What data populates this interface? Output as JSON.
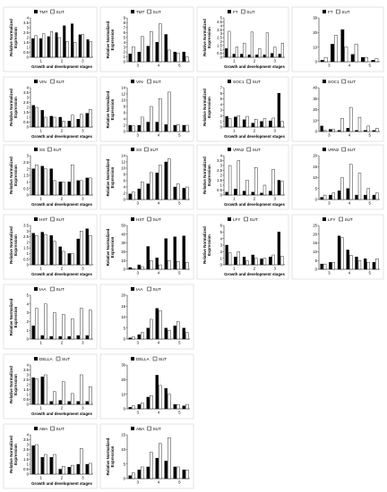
{
  "figure": {
    "colors": {
      "tmt": "#000000",
      "sut": "#ffffff",
      "stroke": "#000000",
      "panel_border": "#c8c8c8"
    }
  },
  "chart_data": [
    {
      "type": "bar",
      "legend": [
        "TMT",
        "SUT"
      ],
      "ylabel": "Relative Normalized Expression",
      "xlabel": "Growth and development stages",
      "ylim": [
        0,
        4
      ],
      "yticks": [
        0,
        0.5,
        1,
        1.5,
        2,
        2.5,
        3,
        3.5,
        4
      ],
      "xticklabels": [
        "1",
        "2",
        "3"
      ],
      "series": [
        {
          "name": "TMT",
          "values": [
            1.9,
            1.9,
            2.1,
            2.5,
            3.2,
            3.4,
            2.3,
            1.8
          ]
        },
        {
          "name": "SUT",
          "values": [
            2.2,
            2.4,
            2.6,
            2.0,
            1.6,
            1.5,
            2.3,
            1.6
          ]
        }
      ]
    },
    {
      "type": "bar",
      "legend": [
        "TMT",
        "SUT"
      ],
      "ylabel": "Relative Normalized Expression",
      "xlabel": "",
      "ylim": [
        0,
        9
      ],
      "yticks": [
        0,
        1,
        2,
        3,
        4,
        5,
        6,
        7,
        8,
        9
      ],
      "xticklabels": [
        "3",
        "4",
        "5"
      ],
      "series": [
        {
          "name": "TMT",
          "values": [
            1.6,
            2.0,
            3.2,
            4.0,
            5.6,
            2.0,
            2.0
          ]
        },
        {
          "name": "SUT",
          "values": [
            3.1,
            5.2,
            6.2,
            7.8,
            2.4,
            1.8,
            1.0
          ]
        }
      ]
    },
    {
      "type": "bar",
      "legend": [
        "FT",
        "SUT"
      ],
      "ylabel": "Relative Normalized Expression",
      "xlabel": "Growth and development stages",
      "ylim": [
        0,
        5
      ],
      "yticks": [
        0,
        0.5,
        1,
        1.5,
        2,
        2.5,
        3,
        3.5,
        4,
        4.5,
        5
      ],
      "xticklabels": [
        "1",
        "2",
        "3"
      ],
      "series": [
        {
          "name": "FT",
          "values": [
            1.1,
            0.4,
            0.4,
            0.3,
            0.3,
            0.3,
            0.5,
            0.4
          ]
        },
        {
          "name": "SUT",
          "values": [
            3.3,
            1.3,
            1.8,
            3.2,
            1.1,
            3.1,
            1.3,
            1.8
          ]
        }
      ]
    },
    {
      "type": "bar",
      "legend": [
        "FT",
        "SUT"
      ],
      "ylabel": "",
      "xlabel": "",
      "ylim": [
        0,
        30
      ],
      "yticks": [
        0,
        10,
        20,
        30
      ],
      "xticklabels": [
        "3",
        "4",
        "5"
      ],
      "series": [
        {
          "name": "FT",
          "values": [
            1.0,
            12.0,
            22.0,
            5.0,
            3.0,
            1.0
          ]
        },
        {
          "name": "SUT",
          "values": [
            3.0,
            18.0,
            10.0,
            12.0,
            3.0,
            2.0
          ]
        }
      ]
    },
    {
      "type": "bar",
      "legend": [
        "VIN",
        "SUT"
      ],
      "ylabel": "Relative Normalized Expression",
      "xlabel": "Growth and development stages",
      "ylim": [
        0,
        4
      ],
      "yticks": [
        0,
        0.5,
        1,
        1.5,
        2,
        2.5,
        3,
        3.5,
        4
      ],
      "xticklabels": [
        "1",
        "2",
        "3"
      ],
      "series": [
        {
          "name": "VIN",
          "values": [
            2.2,
            1.7,
            1.1,
            1.0,
            0.6,
            0.8,
            1.4
          ]
        },
        {
          "name": "SUT",
          "values": [
            2.0,
            1.0,
            1.0,
            0.6,
            1.2,
            1.3,
            1.8
          ]
        }
      ]
    },
    {
      "type": "bar",
      "legend": [
        "VIN",
        "SUT"
      ],
      "ylabel": "Relative Normalized Expression",
      "xlabel": "",
      "ylim": [
        0,
        14
      ],
      "yticks": [
        0,
        2,
        4,
        6,
        8,
        10,
        12,
        14
      ],
      "xticklabels": [
        "3",
        "4",
        "5"
      ],
      "series": [
        {
          "name": "VIN",
          "values": [
            2.0,
            2.0,
            3.0,
            3.0,
            2.2,
            2.0,
            2.0
          ]
        },
        {
          "name": "SUT",
          "values": [
            1.8,
            4.6,
            8.0,
            10.5,
            12.6,
            2.2,
            2.0
          ]
        }
      ]
    },
    {
      "type": "bar",
      "legend": [
        "SOC1",
        "SUT"
      ],
      "ylabel": "Relative Normalized Expression",
      "xlabel": "Growth and development stages",
      "ylim": [
        0,
        7
      ],
      "yticks": [
        0,
        1,
        2,
        3,
        4,
        5,
        6,
        7
      ],
      "xticklabels": [
        "1",
        "2",
        "3"
      ],
      "series": [
        {
          "name": "SOC1",
          "values": [
            1.9,
            1.8,
            1.3,
            0.7,
            1.0,
            1.1,
            6.0
          ]
        },
        {
          "name": "SUT",
          "values": [
            1.5,
            2.0,
            1.9,
            1.4,
            1.5,
            1.6,
            1.0
          ]
        }
      ]
    },
    {
      "type": "bar",
      "legend": [
        "SOC1",
        "SUT"
      ],
      "ylabel": "",
      "xlabel": "",
      "ylim": [
        0,
        40
      ],
      "yticks": [
        0,
        10,
        20,
        30,
        40
      ],
      "xticklabels": [
        "3",
        "4",
        "5"
      ],
      "series": [
        {
          "name": "SOC1",
          "values": [
            5.0,
            2.0,
            1.0,
            3.0,
            1.0,
            1.0,
            1.0
          ]
        },
        {
          "name": "SUT",
          "values": [
            1.0,
            2.0,
            12.0,
            22.0,
            13.0,
            5.0,
            3.0
          ]
        }
      ]
    },
    {
      "type": "bar",
      "legend": [
        "SS",
        "SUT"
      ],
      "ylabel": "Relative Normalized Expression",
      "xlabel": "Growth and development stages",
      "ylim": [
        0,
        3
      ],
      "yticks": [
        0,
        0.5,
        1,
        1.5,
        2,
        2.5,
        3
      ],
      "xticklabels": [
        "1",
        "2",
        "3"
      ],
      "series": [
        {
          "name": "SS",
          "values": [
            2.0,
            2.2,
            2.0,
            1.0,
            1.0,
            1.1,
            1.3
          ]
        },
        {
          "name": "SUT",
          "values": [
            2.3,
            2.0,
            1.1,
            1.0,
            2.3,
            1.1,
            1.3
          ]
        }
      ]
    },
    {
      "type": "bar",
      "legend": [
        "SS",
        "SUT"
      ],
      "ylabel": "Relative Normalized Expression",
      "xlabel": "",
      "ylim": [
        0,
        14
      ],
      "yticks": [
        0,
        2,
        4,
        6,
        8,
        10,
        12,
        14
      ],
      "xticklabels": [
        "3",
        "4",
        "5"
      ],
      "series": [
        {
          "name": "SS",
          "values": [
            1.8,
            3.4,
            5.0,
            8.5,
            12.0,
            4.0,
            3.6
          ]
        },
        {
          "name": "SUT",
          "values": [
            2.4,
            5.6,
            8.6,
            11.0,
            13.0,
            5.0,
            4.0
          ]
        }
      ]
    },
    {
      "type": "bar",
      "legend": [
        "VRN2",
        "SUT"
      ],
      "ylabel": "Relative Normalized Expression",
      "xlabel": "Growth and development stages",
      "ylim": [
        0,
        4
      ],
      "yticks": [
        0,
        0.5,
        1,
        1.5,
        2,
        2.5,
        3,
        3.5,
        4
      ],
      "xticklabels": [
        "1",
        "2",
        "3"
      ],
      "series": [
        {
          "name": "VRN2",
          "values": [
            0.3,
            0.6,
            0.4,
            0.3,
            0.2,
            0.4,
            1.5
          ]
        },
        {
          "name": "SUT",
          "values": [
            3.0,
            3.5,
            1.5,
            2.8,
            1.0,
            2.6,
            1.4
          ]
        }
      ]
    },
    {
      "type": "bar",
      "legend": [
        "VRN2",
        "SUT"
      ],
      "ylabel": "",
      "xlabel": "",
      "ylim": [
        0,
        20
      ],
      "yticks": [
        0,
        5,
        10,
        15,
        20
      ],
      "xticklabels": [
        "3",
        "4",
        "5"
      ],
      "series": [
        {
          "name": "VRN2",
          "values": [
            1.0,
            2.0,
            4.0,
            5.0,
            2.0,
            2.0,
            2.0
          ]
        },
        {
          "name": "SUT",
          "values": [
            2.0,
            3.0,
            10.0,
            16.0,
            12.0,
            5.0,
            3.0
          ]
        }
      ]
    },
    {
      "type": "bar",
      "legend": [
        "HXT",
        "SUT"
      ],
      "ylabel": "Relative Normalized Expression",
      "xlabel": "Growth and development stages",
      "ylim": [
        0,
        3.5
      ],
      "yticks": [
        0,
        0.5,
        1,
        1.5,
        2,
        2.5,
        3,
        3.5
      ],
      "xticklabels": [
        "1",
        "2",
        "3"
      ],
      "series": [
        {
          "name": "HXT",
          "values": [
            2.8,
            2.9,
            2.6,
            1.6,
            1.0,
            2.3,
            3.2
          ]
        },
        {
          "name": "SUT",
          "values": [
            2.6,
            2.7,
            2.1,
            1.2,
            1.0,
            3.0,
            2.6
          ]
        }
      ]
    },
    {
      "type": "bar",
      "legend": [
        "HXT",
        "SUT"
      ],
      "ylabel": "Relative Normalized Expression",
      "xlabel": "",
      "ylim": [
        0,
        50
      ],
      "yticks": [
        0,
        10,
        20,
        30,
        40,
        50
      ],
      "xticklabels": [
        "3",
        "4",
        "5"
      ],
      "series": [
        {
          "name": "HXT",
          "values": [
            2.0,
            5.0,
            26.0,
            13.0,
            35.0,
            37.0,
            38.0
          ]
        },
        {
          "name": "SUT",
          "values": [
            1.0,
            3.0,
            10.0,
            5.0,
            10.0,
            9.0,
            8.0
          ]
        }
      ]
    },
    {
      "type": "bar",
      "legend": [
        "LFY",
        "SUT"
      ],
      "ylabel": "Relative Normalized Expression",
      "xlabel": "Growth and development stages",
      "ylim": [
        0,
        6
      ],
      "yticks": [
        0,
        1,
        2,
        3,
        4,
        5,
        6
      ],
      "xticklabels": [
        "1",
        "2",
        "3"
      ],
      "series": [
        {
          "name": "LFY",
          "values": [
            3.0,
            1.2,
            1.2,
            1.5,
            0.9,
            1.2,
            5.0
          ]
        },
        {
          "name": "SUT",
          "values": [
            1.8,
            2.0,
            0.6,
            1.0,
            1.0,
            1.5,
            1.3
          ]
        }
      ]
    },
    {
      "type": "bar",
      "legend": [
        "LFY",
        "SUT"
      ],
      "ylabel": "",
      "xlabel": "",
      "ylim": [
        0,
        25
      ],
      "yticks": [
        0,
        5,
        10,
        15,
        20,
        25
      ],
      "xticklabels": [
        "3",
        "4",
        "5"
      ],
      "series": [
        {
          "name": "LFY",
          "values": [
            3.0,
            4.0,
            19.0,
            11.0,
            7.0,
            6.0,
            4.0
          ]
        },
        {
          "name": "SUT",
          "values": [
            3.0,
            4.0,
            18.0,
            8.0,
            5.0,
            4.0,
            6.0
          ]
        }
      ]
    },
    {
      "type": "bar",
      "legend": [
        "IAA",
        "SUT"
      ],
      "ylabel": "Relative Normalized Expression",
      "xlabel": "",
      "ylim": [
        0,
        5
      ],
      "yticks": [
        0,
        1,
        2,
        3,
        4,
        5
      ],
      "xticklabels": [
        "1",
        "2",
        "3"
      ],
      "series": [
        {
          "name": "IAA",
          "values": [
            1.5,
            0.4,
            0.3,
            0.3,
            0.3,
            0.4,
            0.4
          ]
        },
        {
          "name": "SUT",
          "values": [
            3.5,
            4.0,
            3.0,
            2.8,
            2.3,
            3.5,
            3.3
          ]
        }
      ]
    },
    {
      "type": "bar",
      "legend": [
        "IAA",
        "SUT"
      ],
      "ylabel": "",
      "xlabel": "",
      "ylim": [
        0,
        20
      ],
      "yticks": [
        0,
        5,
        10,
        15,
        20
      ],
      "xticklabels": [
        "3",
        "4",
        "5"
      ],
      "series": [
        {
          "name": "IAA",
          "values": [
            0.5,
            2.0,
            5.0,
            14.0,
            5.0,
            6.0,
            5.0
          ]
        },
        {
          "name": "SUT",
          "values": [
            1.0,
            3.0,
            9.0,
            13.0,
            4.0,
            8.0,
            3.0
          ]
        }
      ]
    },
    {
      "type": "bar",
      "legend": [
        "DELLA",
        "SUT"
      ],
      "ylabel": "Relative Normalized Expression",
      "xlabel": "Growth and development stages",
      "ylim": [
        0,
        4
      ],
      "yticks": [
        0,
        0.5,
        1,
        1.5,
        2,
        2.5,
        3,
        3.5,
        4
      ],
      "xticklabels": [
        "1",
        "2",
        "3"
      ],
      "series": [
        {
          "name": "DELLA",
          "values": [
            2.7,
            2.8,
            0.3,
            0.4,
            0.3,
            0.3,
            0.3
          ]
        },
        {
          "name": "SUT",
          "values": [
            2.6,
            3.0,
            1.3,
            2.3,
            1.1,
            3.0,
            1.8
          ]
        }
      ]
    },
    {
      "type": "bar",
      "legend": [
        "DELLA",
        "SUT"
      ],
      "ylabel": "",
      "xlabel": "",
      "ylim": [
        0,
        30
      ],
      "yticks": [
        0,
        10,
        20,
        30
      ],
      "xticklabels": [
        "3",
        "4",
        "5"
      ],
      "series": [
        {
          "name": "DELLA",
          "values": [
            1.0,
            3.0,
            8.0,
            23.0,
            14.0,
            3.0,
            2.0
          ]
        },
        {
          "name": "SUT",
          "values": [
            2.0,
            4.0,
            9.0,
            16.0,
            10.0,
            3.0,
            3.0
          ]
        }
      ]
    },
    {
      "type": "bar",
      "legend": [
        "ABA",
        "SUT"
      ],
      "ylabel": "Relative Normalized Expression",
      "xlabel": "Growth and development stages",
      "ylim": [
        0,
        4
      ],
      "yticks": [
        0,
        0.5,
        1,
        1.5,
        2,
        2.5,
        3,
        3.5,
        4
      ],
      "xticklabels": [
        "1",
        "2",
        "3"
      ],
      "series": [
        {
          "name": "ABA",
          "values": [
            2.9,
            1.7,
            1.7,
            0.5,
            0.7,
            1.0,
            1.0
          ]
        },
        {
          "name": "SUT",
          "values": [
            3.0,
            2.0,
            2.0,
            0.8,
            0.9,
            2.6,
            1.1
          ]
        }
      ]
    },
    {
      "type": "bar",
      "legend": [
        "ABA",
        "SUT"
      ],
      "ylabel": "Relative Normalized Expression",
      "xlabel": "",
      "ylim": [
        0,
        15
      ],
      "yticks": [
        0,
        5,
        10,
        15
      ],
      "xticklabels": [
        "3",
        "4",
        "5"
      ],
      "series": [
        {
          "name": "ABA",
          "values": [
            1.0,
            3.0,
            4.0,
            7.0,
            6.0,
            4.0,
            3.0
          ]
        },
        {
          "name": "SUT",
          "values": [
            2.0,
            4.0,
            9.0,
            12.0,
            14.0,
            4.0,
            3.0
          ]
        }
      ]
    }
  ]
}
